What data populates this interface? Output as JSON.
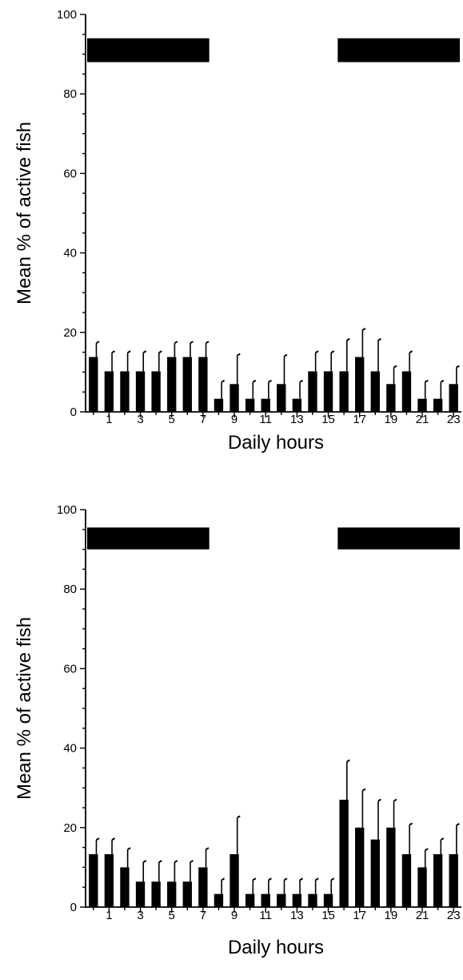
{
  "chart_data": [
    {
      "type": "bar",
      "xlabel": "Daily hours",
      "ylabel": "Mean % of active fish",
      "ylim": [
        0,
        100
      ],
      "yticks": [
        0,
        20,
        40,
        60,
        80,
        100
      ],
      "xlim": [
        -0.5,
        23.5
      ],
      "xtick_labels": [
        "1",
        "3",
        "5",
        "7",
        "9",
        "11",
        "13",
        "15",
        "17",
        "19",
        "21",
        "23"
      ],
      "x": [
        0,
        1,
        2,
        3,
        4,
        5,
        6,
        7,
        8,
        9,
        10,
        11,
        12,
        13,
        14,
        15,
        16,
        17,
        18,
        19,
        20,
        21,
        22,
        23
      ],
      "values": [
        13.8,
        10.2,
        10.2,
        10.2,
        10.2,
        13.8,
        13.8,
        13.8,
        3.3,
        7.0,
        3.3,
        3.3,
        7.0,
        3.3,
        10.2,
        10.2,
        10.2,
        13.8,
        10.2,
        7.0,
        10.2,
        3.3,
        3.3,
        7.0
      ],
      "error": [
        3.5,
        4.7,
        4.7,
        4.7,
        4.7,
        3.5,
        3.5,
        3.5,
        4.2,
        7.2,
        4.2,
        4.2,
        7.0,
        4.2,
        4.7,
        4.7,
        7.8,
        6.8,
        7.8,
        4.2,
        4.7,
        4.2,
        4.2,
        4.2
      ],
      "dark_periods": [
        [
          -0.5,
          7.5
        ],
        [
          15.5,
          23.5
        ]
      ],
      "dark_band_y": [
        88,
        94
      ],
      "grid": false
    },
    {
      "type": "bar",
      "xlabel": "Daily hours",
      "ylabel": "Mean % of active fish",
      "ylim": [
        0,
        100
      ],
      "yticks": [
        0,
        20,
        40,
        60,
        80,
        100
      ],
      "xlim": [
        -0.5,
        23.5
      ],
      "xtick_labels": [
        "1",
        "3",
        "5",
        "7",
        "9",
        "11",
        "13",
        "15",
        "17",
        "19",
        "21",
        "23"
      ],
      "x": [
        0,
        1,
        2,
        3,
        4,
        5,
        6,
        7,
        8,
        9,
        10,
        11,
        12,
        13,
        14,
        15,
        16,
        17,
        18,
        19,
        20,
        21,
        22,
        23
      ],
      "values": [
        13.3,
        13.3,
        10.0,
        6.4,
        6.4,
        6.4,
        6.4,
        10.0,
        3.3,
        13.3,
        3.3,
        3.3,
        3.3,
        3.3,
        3.3,
        3.3,
        27.0,
        20.0,
        17.0,
        20.0,
        13.3,
        10.0,
        13.3,
        13.3
      ],
      "error": [
        3.6,
        3.6,
        4.5,
        4.9,
        4.9,
        4.9,
        4.9,
        4.5,
        3.5,
        9.2,
        3.5,
        3.5,
        3.5,
        3.5,
        3.5,
        3.5,
        9.6,
        9.3,
        9.7,
        6.7,
        7.4,
        4.3,
        3.6,
        7.3
      ],
      "dark_periods": [
        [
          -0.5,
          7.5
        ],
        [
          15.5,
          23.5
        ]
      ],
      "dark_band_y": [
        90,
        95.5
      ],
      "grid": false
    }
  ]
}
